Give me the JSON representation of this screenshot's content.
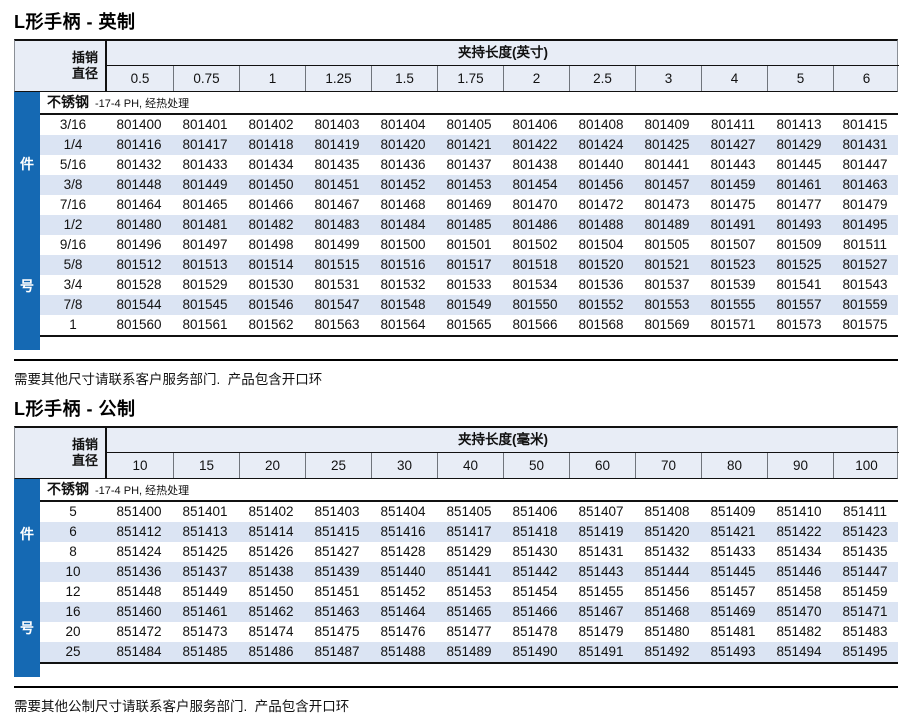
{
  "page": {
    "accent_blue": "#1569b3",
    "alt_row_color": "#dbe4f3",
    "header_bg": "#e8edf6"
  },
  "tables": [
    {
      "title": "L形手柄 - 英制",
      "pin_label_line1": "插销",
      "pin_label_line2": "直径",
      "span_label": "夹持长度(英寸)",
      "columns": [
        "0.5",
        "0.75",
        "1",
        "1.25",
        "1.5",
        "1.75",
        "2",
        "2.5",
        "3",
        "4",
        "5",
        "6"
      ],
      "material": "不锈钢",
      "material_note": "-17-4 PH, 经热处理",
      "side_top": "件",
      "side_bottom": "号",
      "rows": [
        {
          "label": "3/16",
          "parts": [
            "801400",
            "801401",
            "801402",
            "801403",
            "801404",
            "801405",
            "801406",
            "801408",
            "801409",
            "801411",
            "801413",
            "801415"
          ]
        },
        {
          "label": "1/4",
          "parts": [
            "801416",
            "801417",
            "801418",
            "801419",
            "801420",
            "801421",
            "801422",
            "801424",
            "801425",
            "801427",
            "801429",
            "801431"
          ]
        },
        {
          "label": "5/16",
          "parts": [
            "801432",
            "801433",
            "801434",
            "801435",
            "801436",
            "801437",
            "801438",
            "801440",
            "801441",
            "801443",
            "801445",
            "801447"
          ]
        },
        {
          "label": "3/8",
          "parts": [
            "801448",
            "801449",
            "801450",
            "801451",
            "801452",
            "801453",
            "801454",
            "801456",
            "801457",
            "801459",
            "801461",
            "801463"
          ]
        },
        {
          "label": "7/16",
          "parts": [
            "801464",
            "801465",
            "801466",
            "801467",
            "801468",
            "801469",
            "801470",
            "801472",
            "801473",
            "801475",
            "801477",
            "801479"
          ]
        },
        {
          "label": "1/2",
          "parts": [
            "801480",
            "801481",
            "801482",
            "801483",
            "801484",
            "801485",
            "801486",
            "801488",
            "801489",
            "801491",
            "801493",
            "801495"
          ]
        },
        {
          "label": "9/16",
          "parts": [
            "801496",
            "801497",
            "801498",
            "801499",
            "801500",
            "801501",
            "801502",
            "801504",
            "801505",
            "801507",
            "801509",
            "801511"
          ]
        },
        {
          "label": "5/8",
          "parts": [
            "801512",
            "801513",
            "801514",
            "801515",
            "801516",
            "801517",
            "801518",
            "801520",
            "801521",
            "801523",
            "801525",
            "801527"
          ]
        },
        {
          "label": "3/4",
          "parts": [
            "801528",
            "801529",
            "801530",
            "801531",
            "801532",
            "801533",
            "801534",
            "801536",
            "801537",
            "801539",
            "801541",
            "801543"
          ]
        },
        {
          "label": "7/8",
          "parts": [
            "801544",
            "801545",
            "801546",
            "801547",
            "801548",
            "801549",
            "801550",
            "801552",
            "801553",
            "801555",
            "801557",
            "801559"
          ]
        },
        {
          "label": "1",
          "parts": [
            "801560",
            "801561",
            "801562",
            "801563",
            "801564",
            "801565",
            "801566",
            "801568",
            "801569",
            "801571",
            "801573",
            "801575"
          ]
        }
      ],
      "footnote": "需要其他尺寸请联系客户服务部门.  产品包含开口环"
    },
    {
      "title": "L形手柄 - 公制",
      "pin_label_line1": "插销",
      "pin_label_line2": "直径",
      "span_label": "夹持长度(毫米)",
      "columns": [
        "10",
        "15",
        "20",
        "25",
        "30",
        "40",
        "50",
        "60",
        "70",
        "80",
        "90",
        "100"
      ],
      "material": "不锈钢",
      "material_note": "-17-4 PH, 经热处理",
      "side_top": "件",
      "side_bottom": "号",
      "rows": [
        {
          "label": "5",
          "parts": [
            "851400",
            "851401",
            "851402",
            "851403",
            "851404",
            "851405",
            "851406",
            "851407",
            "851408",
            "851409",
            "851410",
            "851411"
          ]
        },
        {
          "label": "6",
          "parts": [
            "851412",
            "851413",
            "851414",
            "851415",
            "851416",
            "851417",
            "851418",
            "851419",
            "851420",
            "851421",
            "851422",
            "851423"
          ]
        },
        {
          "label": "8",
          "parts": [
            "851424",
            "851425",
            "851426",
            "851427",
            "851428",
            "851429",
            "851430",
            "851431",
            "851432",
            "851433",
            "851434",
            "851435"
          ]
        },
        {
          "label": "10",
          "parts": [
            "851436",
            "851437",
            "851438",
            "851439",
            "851440",
            "851441",
            "851442",
            "851443",
            "851444",
            "851445",
            "851446",
            "851447"
          ]
        },
        {
          "label": "12",
          "parts": [
            "851448",
            "851449",
            "851450",
            "851451",
            "851452",
            "851453",
            "851454",
            "851455",
            "851456",
            "851457",
            "851458",
            "851459"
          ]
        },
        {
          "label": "16",
          "parts": [
            "851460",
            "851461",
            "851462",
            "851463",
            "851464",
            "851465",
            "851466",
            "851467",
            "851468",
            "851469",
            "851470",
            "851471"
          ]
        },
        {
          "label": "20",
          "parts": [
            "851472",
            "851473",
            "851474",
            "851475",
            "851476",
            "851477",
            "851478",
            "851479",
            "851480",
            "851481",
            "851482",
            "851483"
          ]
        },
        {
          "label": "25",
          "parts": [
            "851484",
            "851485",
            "851486",
            "851487",
            "851488",
            "851489",
            "851490",
            "851491",
            "851492",
            "851493",
            "851494",
            "851495"
          ]
        }
      ],
      "footnote": "需要其他公制尺寸请联系客户服务部门.  产品包含开口环"
    }
  ]
}
